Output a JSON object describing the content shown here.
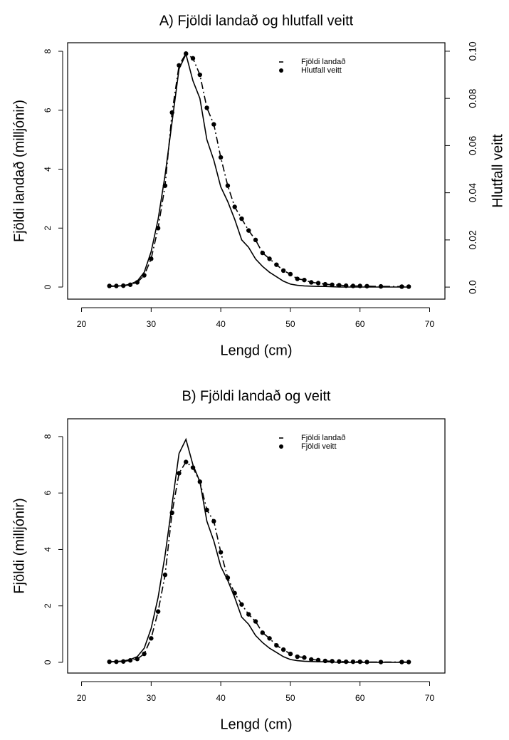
{
  "chart_data": [
    {
      "type": "line",
      "title": "A) Fjöldi landað og hlutfall veitt",
      "x_label": "Lengd (cm)",
      "y_label": "Fjöldi landað (milljónir)",
      "y2_label": "Hlutfall veitt",
      "x": [
        24,
        25,
        26,
        27,
        28,
        29,
        30,
        31,
        32,
        33,
        34,
        35,
        36,
        37,
        38,
        39,
        40,
        41,
        42,
        43,
        44,
        45,
        46,
        47,
        48,
        49,
        50,
        51,
        52,
        53,
        54,
        55,
        56,
        57,
        58,
        59,
        60,
        61,
        63,
        66,
        67
      ],
      "series": [
        {
          "name": "Fjöldi landað",
          "color": "#000000",
          "linestyle": "solid",
          "markers": false,
          "values": [
            0.02,
            0.03,
            0.05,
            0.1,
            0.2,
            0.5,
            1.2,
            2.3,
            3.8,
            5.6,
            7.4,
            7.9,
            7.0,
            6.4,
            5.0,
            4.3,
            3.4,
            2.9,
            2.3,
            1.6,
            1.35,
            0.95,
            0.7,
            0.5,
            0.35,
            0.2,
            0.1,
            0.06,
            0.04,
            0.03,
            0.02,
            0.02,
            0.01,
            0,
            0,
            0,
            0,
            0,
            0,
            0,
            0
          ]
        },
        {
          "name": "Hlutfall veitt",
          "color": "#000000",
          "linestyle": "dashed",
          "markers": true,
          "axis": "y2",
          "values": [
            0.0005,
            0.0005,
            0.0006,
            0.001,
            0.002,
            0.005,
            0.012,
            0.025,
            0.043,
            0.074,
            0.094,
            0.099,
            0.097,
            0.09,
            0.076,
            0.069,
            0.055,
            0.043,
            0.034,
            0.029,
            0.024,
            0.02,
            0.0145,
            0.012,
            0.0095,
            0.007,
            0.0055,
            0.0035,
            0.003,
            0.002,
            0.0017,
            0.0012,
            0.001,
            0.0008,
            0.0006,
            0.0005,
            0.0005,
            0.0004,
            0.0003,
            0.0002,
            0.0002
          ]
        }
      ],
      "xlim": [
        18,
        72.2
      ],
      "xticks": [
        20,
        30,
        40,
        50,
        60,
        70
      ],
      "ylim": [
        -0.41,
        8.29
      ],
      "yticks": [
        0,
        2,
        4,
        6,
        8
      ],
      "y2lim": [
        -0.0051,
        0.1036
      ],
      "y2ticks": [
        {
          "value": 0,
          "label": "0.0"
        },
        0.02,
        0.04,
        0.06,
        0.08,
        {
          "value": 0.1,
          "label": "0.10"
        }
      ],
      "legend": "top-right"
    },
    {
      "type": "line",
      "title": "B) Fjöldi landað og veitt",
      "x_label": "Lengd (cm)",
      "y_label": "Fjöldi (milljónir)",
      "x": [
        24,
        25,
        26,
        27,
        28,
        29,
        30,
        31,
        32,
        33,
        34,
        35,
        36,
        37,
        38,
        39,
        40,
        41,
        42,
        43,
        44,
        45,
        46,
        47,
        48,
        49,
        50,
        51,
        52,
        53,
        54,
        55,
        56,
        57,
        58,
        59,
        60,
        61,
        63,
        66,
        67
      ],
      "series": [
        {
          "name": "Fjöldi landað",
          "color": "#000000",
          "linestyle": "solid",
          "markers": false,
          "values": [
            0.02,
            0.03,
            0.05,
            0.1,
            0.2,
            0.5,
            1.2,
            2.3,
            3.8,
            5.6,
            7.4,
            7.9,
            7.0,
            6.4,
            5.0,
            4.3,
            3.4,
            2.9,
            2.3,
            1.6,
            1.35,
            0.95,
            0.7,
            0.5,
            0.35,
            0.2,
            0.1,
            0.06,
            0.04,
            0.03,
            0.02,
            0.02,
            0.01,
            0,
            0,
            0,
            0,
            0,
            0,
            0,
            0
          ]
        },
        {
          "name": "Fjöldi veitt",
          "color": "#000000",
          "linestyle": "dashed",
          "markers": true,
          "values": [
            0.02,
            0.02,
            0.03,
            0.07,
            0.12,
            0.3,
            0.85,
            1.8,
            3.1,
            5.3,
            6.7,
            7.1,
            6.9,
            6.4,
            5.4,
            5.0,
            3.9,
            3.0,
            2.45,
            2.05,
            1.7,
            1.45,
            1.05,
            0.85,
            0.6,
            0.45,
            0.3,
            0.2,
            0.17,
            0.1,
            0.08,
            0.05,
            0.04,
            0.03,
            0.02,
            0.02,
            0.02,
            0.01,
            0.01,
            0.01,
            0.01
          ]
        }
      ],
      "xlim": [
        18,
        72.2
      ],
      "xticks": [
        20,
        30,
        40,
        50,
        60,
        70
      ],
      "ylim": [
        -0.38,
        8.63
      ],
      "yticks": [
        0,
        2,
        4,
        6,
        8
      ],
      "legend": "top-right"
    }
  ]
}
